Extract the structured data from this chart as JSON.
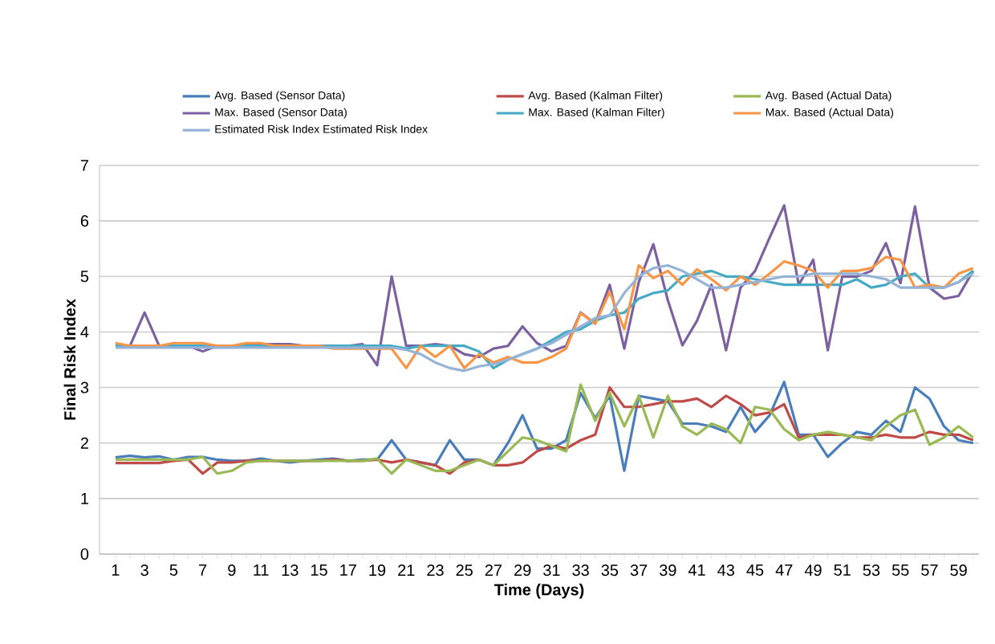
{
  "chart_data": {
    "type": "line",
    "xlabel": "Time (Days)",
    "ylabel": "Final Risk Index",
    "categories": [
      "1",
      null,
      "3",
      null,
      "5",
      null,
      "7",
      null,
      "9",
      null,
      "11",
      null,
      "13",
      null,
      "15",
      null,
      "17",
      null,
      "19",
      null,
      "21",
      null,
      "23",
      null,
      "25",
      null,
      "27",
      null,
      "29",
      null,
      "31",
      null,
      "33",
      null,
      "35",
      null,
      "37",
      null,
      "39",
      null,
      "41",
      null,
      "43",
      null,
      "45",
      null,
      "47",
      null,
      "49",
      null,
      "51",
      null,
      "53",
      null,
      "55",
      null,
      "57",
      null,
      "59",
      null
    ],
    "series": [
      {
        "name": "Avg. Based (Sensor Data)",
        "color": "#4a7ebb",
        "values": [
          1.74,
          1.77,
          1.74,
          1.76,
          1.7,
          1.75,
          1.75,
          1.7,
          1.68,
          1.68,
          1.72,
          1.68,
          1.65,
          1.68,
          1.7,
          1.72,
          1.68,
          1.7,
          1.7,
          2.05,
          1.7,
          1.65,
          1.6,
          2.05,
          1.7,
          1.7,
          1.6,
          2.0,
          2.5,
          1.9,
          1.9,
          2.05,
          2.9,
          2.45,
          2.85,
          1.5,
          2.85,
          2.8,
          2.75,
          2.35,
          2.35,
          2.3,
          2.2,
          2.65,
          2.2,
          2.5,
          3.1,
          2.15,
          2.15,
          1.75,
          2.0,
          2.2,
          2.15,
          2.4,
          2.2,
          3.0,
          2.8,
          2.3,
          2.05,
          2.0
        ]
      },
      {
        "name": "Avg. Based (Kalman Filter)",
        "color": "#be4b48",
        "values": [
          1.64,
          1.64,
          1.64,
          1.64,
          1.68,
          1.7,
          1.45,
          1.65,
          1.65,
          1.68,
          1.68,
          1.68,
          1.68,
          1.68,
          1.68,
          1.7,
          1.68,
          1.68,
          1.7,
          1.65,
          1.7,
          1.65,
          1.6,
          1.45,
          1.65,
          1.7,
          1.6,
          1.6,
          1.65,
          1.85,
          1.95,
          1.9,
          2.05,
          2.15,
          3.0,
          2.65,
          2.65,
          2.7,
          2.75,
          2.75,
          2.8,
          2.65,
          2.85,
          2.7,
          2.5,
          2.55,
          2.7,
          2.1,
          2.15,
          2.15,
          2.15,
          2.1,
          2.1,
          2.15,
          2.1,
          2.1,
          2.2,
          2.15,
          2.15,
          2.05
        ]
      },
      {
        "name": "Avg. Based (Actual Data)",
        "color": "#98b954",
        "values": [
          1.7,
          1.7,
          1.7,
          1.7,
          1.7,
          1.7,
          1.75,
          1.45,
          1.5,
          1.65,
          1.68,
          1.68,
          1.68,
          1.68,
          1.68,
          1.68,
          1.68,
          1.68,
          1.72,
          1.45,
          1.7,
          1.6,
          1.5,
          1.5,
          1.6,
          1.7,
          1.6,
          1.85,
          2.1,
          2.05,
          1.95,
          1.85,
          3.05,
          2.4,
          2.9,
          2.3,
          2.85,
          2.1,
          2.85,
          2.3,
          2.15,
          2.35,
          2.25,
          2.0,
          2.65,
          2.6,
          2.25,
          2.05,
          2.15,
          2.2,
          2.15,
          2.1,
          2.05,
          2.3,
          2.5,
          2.6,
          1.97,
          2.1,
          2.3,
          2.1
        ]
      },
      {
        "name": "Max. Based (Sensor Data)",
        "color": "#7d60a0",
        "values": [
          3.75,
          3.75,
          4.35,
          3.75,
          3.75,
          3.75,
          3.65,
          3.75,
          3.75,
          3.78,
          3.78,
          3.78,
          3.78,
          3.75,
          3.75,
          3.75,
          3.75,
          3.78,
          3.4,
          5.0,
          3.75,
          3.75,
          3.78,
          3.75,
          3.6,
          3.55,
          3.7,
          3.75,
          4.1,
          3.8,
          3.65,
          3.75,
          4.35,
          4.15,
          4.85,
          3.7,
          4.9,
          5.58,
          4.57,
          3.76,
          4.2,
          4.85,
          3.67,
          4.8,
          5.1,
          5.7,
          6.28,
          4.85,
          5.3,
          3.67,
          5.0,
          5.0,
          5.1,
          5.6,
          4.88,
          6.26,
          4.8,
          4.6,
          4.65,
          5.1
        ]
      },
      {
        "name": "Max. Based (Kalman Filter)",
        "color": "#46aac5",
        "values": [
          3.75,
          3.75,
          3.75,
          3.75,
          3.75,
          3.75,
          3.75,
          3.75,
          3.75,
          3.75,
          3.75,
          3.75,
          3.75,
          3.75,
          3.75,
          3.75,
          3.75,
          3.75,
          3.75,
          3.75,
          3.7,
          3.75,
          3.75,
          3.75,
          3.75,
          3.65,
          3.35,
          3.5,
          3.6,
          3.7,
          3.85,
          4.0,
          4.05,
          4.2,
          4.3,
          4.35,
          4.6,
          4.7,
          4.75,
          5.0,
          5.05,
          5.1,
          5.0,
          5.0,
          4.95,
          4.9,
          4.85,
          4.85,
          4.85,
          4.85,
          4.85,
          4.95,
          4.8,
          4.85,
          5.0,
          5.05,
          4.8,
          4.8,
          4.9,
          5.1
        ]
      },
      {
        "name": "Max. Based (Actual Data)",
        "color": "#f79646",
        "values": [
          3.8,
          3.75,
          3.75,
          3.75,
          3.8,
          3.8,
          3.8,
          3.75,
          3.75,
          3.8,
          3.8,
          3.75,
          3.75,
          3.75,
          3.75,
          3.7,
          3.7,
          3.7,
          3.7,
          3.7,
          3.35,
          3.75,
          3.55,
          3.75,
          3.35,
          3.6,
          3.45,
          3.55,
          3.45,
          3.45,
          3.55,
          3.7,
          4.34,
          4.15,
          4.72,
          4.05,
          5.2,
          4.97,
          5.1,
          4.85,
          5.13,
          4.95,
          4.75,
          5.0,
          4.85,
          5.05,
          5.27,
          5.2,
          5.1,
          4.8,
          5.1,
          5.1,
          5.15,
          5.35,
          5.3,
          4.8,
          4.85,
          4.8,
          5.05,
          5.15
        ]
      },
      {
        "name": "Estimated Risk Index Estimated Risk Index",
        "color": "#95b3d7",
        "values": [
          3.72,
          3.72,
          3.72,
          3.72,
          3.72,
          3.72,
          3.72,
          3.72,
          3.72,
          3.72,
          3.72,
          3.72,
          3.72,
          3.72,
          3.72,
          3.72,
          3.72,
          3.72,
          3.72,
          3.72,
          3.68,
          3.6,
          3.45,
          3.35,
          3.3,
          3.38,
          3.42,
          3.5,
          3.6,
          3.7,
          3.8,
          3.95,
          4.1,
          4.25,
          4.3,
          4.7,
          5.0,
          5.15,
          5.2,
          5.1,
          4.95,
          4.8,
          4.8,
          4.85,
          4.9,
          4.95,
          5.0,
          5.0,
          5.05,
          5.05,
          5.05,
          5.05,
          5.0,
          4.95,
          4.8,
          4.8,
          4.8,
          4.8,
          4.9,
          5.05
        ]
      }
    ],
    "ylim": [
      0,
      7
    ],
    "yticks": [
      0,
      1,
      2,
      3,
      4,
      5,
      6,
      7
    ],
    "grid": "y",
    "legend": "top",
    "marker": "none",
    "line_style": "solid"
  }
}
